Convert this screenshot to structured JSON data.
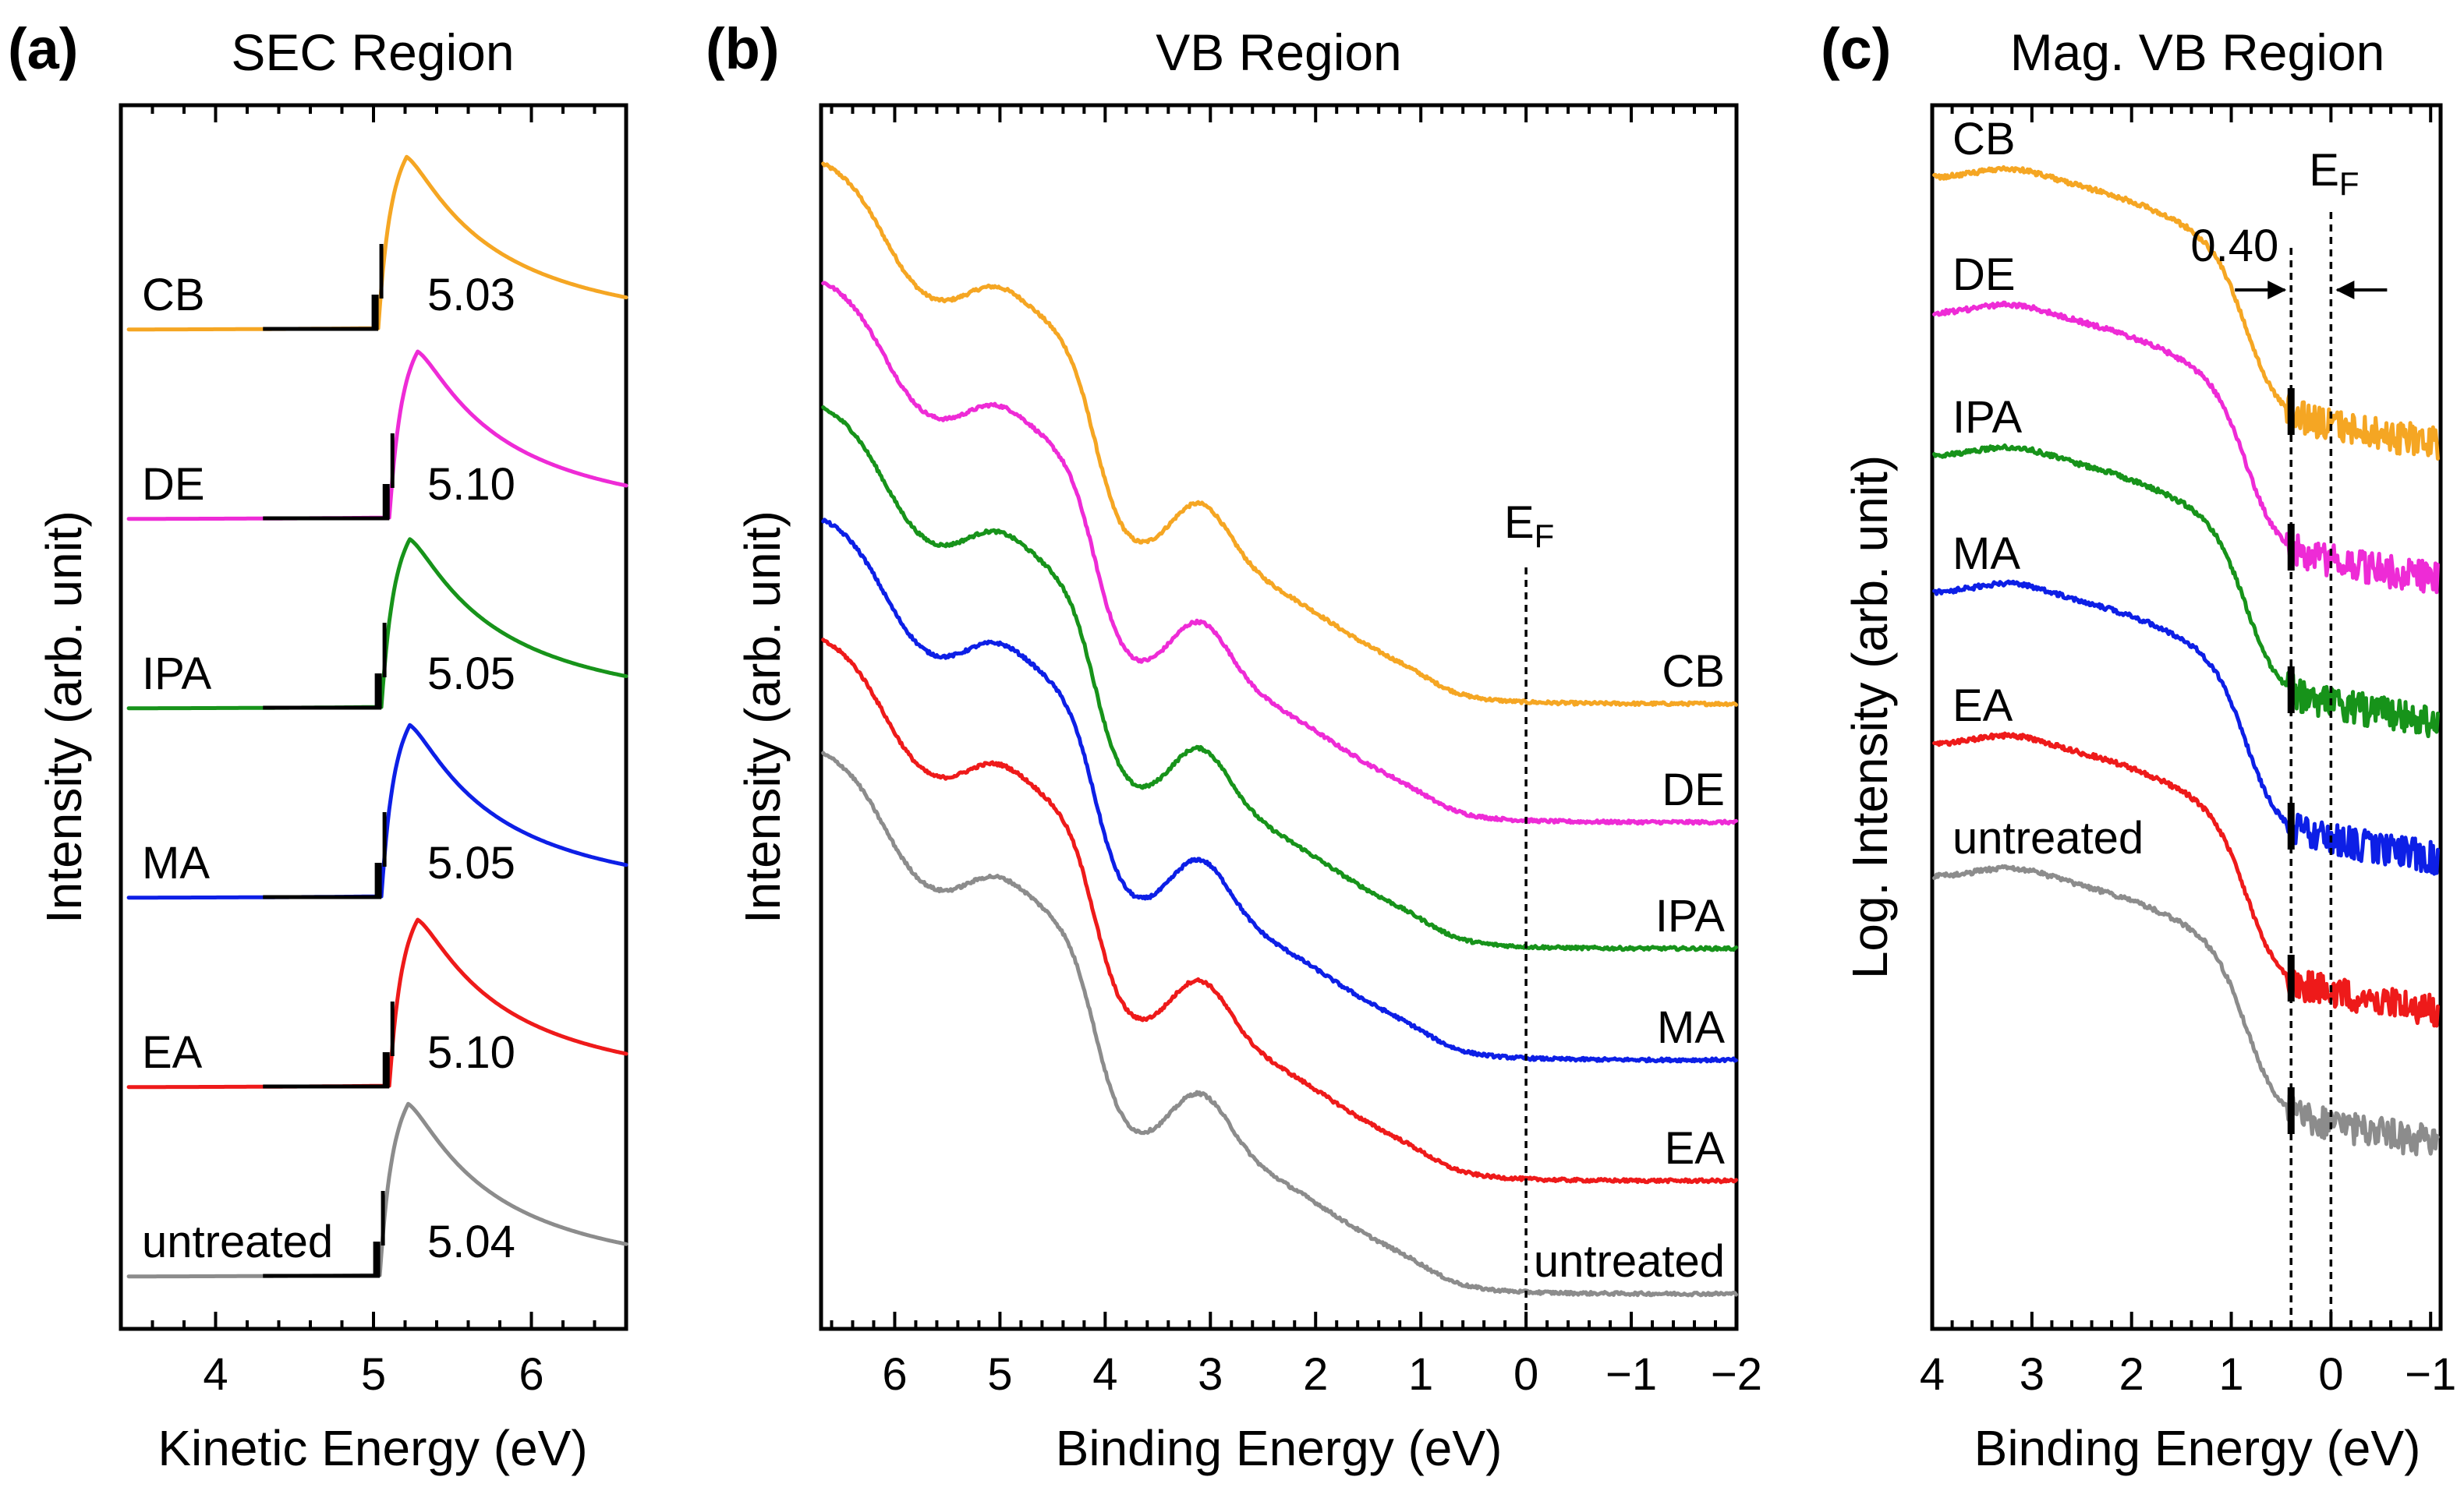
{
  "chart_data": [
    {
      "id": "a",
      "type": "line",
      "panel_letter": "(a)",
      "title": "SEC Region",
      "xlabel": "Kinetic Energy (eV)",
      "ylabel": "Intensity (arb. unit)",
      "xlim": [
        3.4,
        6.6
      ],
      "x_ticks": [
        4,
        5,
        6
      ],
      "x_tick_labels": [
        "4",
        "5",
        "6"
      ],
      "series": [
        {
          "name": "CB",
          "label": "CB",
          "value_label": "5.03",
          "cutoff": 5.03,
          "color": "#f5a623",
          "peak": 1.0
        },
        {
          "name": "DE",
          "label": "DE",
          "value_label": "5.10",
          "cutoff": 5.1,
          "color": "#ee2bd6",
          "peak": 0.97
        },
        {
          "name": "IPA",
          "label": "IPA",
          "value_label": "5.05",
          "cutoff": 5.05,
          "color": "#17931a",
          "peak": 0.98
        },
        {
          "name": "MA",
          "label": "MA",
          "value_label": "5.05",
          "cutoff": 5.05,
          "color": "#0d1fe6",
          "peak": 1.0
        },
        {
          "name": "EA",
          "label": "EA",
          "value_label": "5.10",
          "cutoff": 5.1,
          "color": "#ee1a1a",
          "peak": 0.97
        },
        {
          "name": "untreated",
          "label": "untreated",
          "value_label": "5.04",
          "cutoff": 5.04,
          "color": "#8c8c8c",
          "peak": 1.0
        }
      ]
    },
    {
      "id": "b",
      "type": "line",
      "panel_letter": "(b)",
      "title": "VB Region",
      "xlabel": "Binding Energy (eV)",
      "ylabel": "Intensity (arb. unit)",
      "xlim": [
        6.7,
        -2.0
      ],
      "x_ticks": [
        6,
        5,
        4,
        3,
        2,
        1,
        0,
        -1,
        -2
      ],
      "x_tick_labels": [
        "6",
        "5",
        "4",
        "3",
        "2",
        "1",
        "0",
        "−1",
        "−2"
      ],
      "fermi_label": "E",
      "fermi_sub": "F",
      "fermi_x": 0,
      "series": [
        {
          "name": "CB",
          "label": "CB",
          "color": "#f5a623"
        },
        {
          "name": "DE",
          "label": "DE",
          "color": "#ee2bd6"
        },
        {
          "name": "IPA",
          "label": "IPA",
          "color": "#17931a"
        },
        {
          "name": "MA",
          "label": "MA",
          "color": "#0d1fe6"
        },
        {
          "name": "EA",
          "label": "EA",
          "color": "#ee1a1a"
        },
        {
          "name": "untreated",
          "label": "untreated",
          "color": "#8c8c8c"
        }
      ]
    },
    {
      "id": "c",
      "type": "line",
      "panel_letter": "(c)",
      "title": "Mag. VB Region",
      "xlabel": "Binding Energy (eV)",
      "ylabel": "Log. Intensity (arb. unit)",
      "xlim": [
        4.0,
        -1.1
      ],
      "x_ticks": [
        4,
        3,
        2,
        1,
        0,
        -1
      ],
      "x_tick_labels": [
        "4",
        "3",
        "2",
        "1",
        "0",
        "−1"
      ],
      "fermi_label": "E",
      "fermi_sub": "F",
      "fermi_x": 0,
      "vbm_x": 0.4,
      "vbm_label": "0.40",
      "series": [
        {
          "name": "CB",
          "label": "CB",
          "color": "#f5a623"
        },
        {
          "name": "DE",
          "label": "DE",
          "color": "#ee2bd6"
        },
        {
          "name": "IPA",
          "label": "IPA",
          "color": "#17931a"
        },
        {
          "name": "MA",
          "label": "MA",
          "color": "#0d1fe6"
        },
        {
          "name": "EA",
          "label": "EA",
          "color": "#ee1a1a"
        },
        {
          "name": "untreated",
          "label": "untreated",
          "color": "#8c8c8c"
        }
      ]
    }
  ]
}
